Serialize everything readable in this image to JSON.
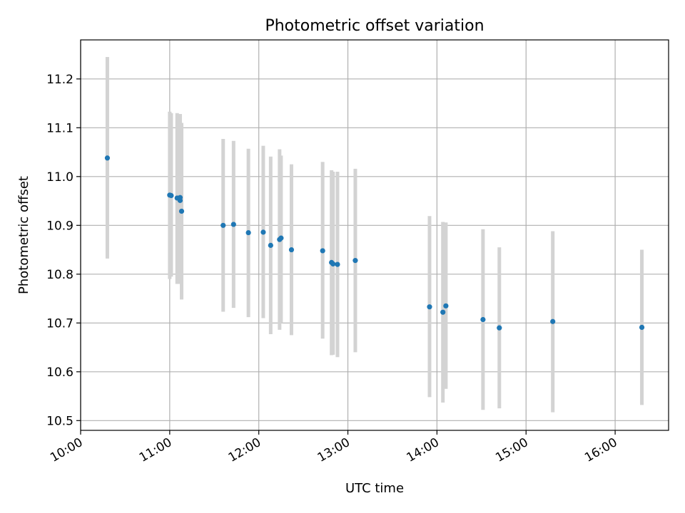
{
  "chart_data": {
    "type": "scatter",
    "title": "Photometric offset variation",
    "xlabel": "UTC time",
    "ylabel": "Photometric offset",
    "x_unit": "time of day (UTC)",
    "xlim": [
      "10:00",
      "16:36"
    ],
    "ylim": [
      10.48,
      11.28
    ],
    "x_ticks": [
      "10:00",
      "11:00",
      "12:00",
      "13:00",
      "14:00",
      "15:00",
      "16:00"
    ],
    "y_ticks": [
      "10.5",
      "10.6",
      "10.7",
      "10.8",
      "10.9",
      "11.0",
      "11.1",
      "11.2"
    ],
    "grid": true,
    "colors": {
      "point": "#1f77b4",
      "errorbar": "#d3d3d3"
    },
    "points": [
      {
        "t": "10:18",
        "y": 11.038,
        "lo": 10.832,
        "hi": 11.245
      },
      {
        "t": "11:00",
        "y": 10.962,
        "lo": 10.79,
        "hi": 11.133
      },
      {
        "t": "11:01",
        "y": 10.961,
        "lo": 10.795,
        "hi": 11.13
      },
      {
        "t": "11:05",
        "y": 10.956,
        "lo": 10.78,
        "hi": 11.13
      },
      {
        "t": "11:07",
        "y": 10.951,
        "lo": 10.78,
        "hi": 11.128
      },
      {
        "t": "11:07",
        "y": 10.957,
        "lo": 10.79,
        "hi": 11.128
      },
      {
        "t": "11:08",
        "y": 10.929,
        "lo": 10.748,
        "hi": 11.11
      },
      {
        "t": "11:36",
        "y": 10.9,
        "lo": 10.723,
        "hi": 11.077
      },
      {
        "t": "11:43",
        "y": 10.902,
        "lo": 10.731,
        "hi": 11.073
      },
      {
        "t": "11:53",
        "y": 10.885,
        "lo": 10.712,
        "hi": 11.057
      },
      {
        "t": "12:03",
        "y": 10.886,
        "lo": 10.71,
        "hi": 11.063
      },
      {
        "t": "12:08",
        "y": 10.859,
        "lo": 10.677,
        "hi": 11.041
      },
      {
        "t": "12:14",
        "y": 10.871,
        "lo": 10.686,
        "hi": 11.056
      },
      {
        "t": "12:15",
        "y": 10.874,
        "lo": 10.7,
        "hi": 11.043
      },
      {
        "t": "12:22",
        "y": 10.85,
        "lo": 10.675,
        "hi": 11.025
      },
      {
        "t": "12:43",
        "y": 10.848,
        "lo": 10.668,
        "hi": 11.03
      },
      {
        "t": "12:49",
        "y": 10.824,
        "lo": 10.634,
        "hi": 11.013
      },
      {
        "t": "12:50",
        "y": 10.821,
        "lo": 10.635,
        "hi": 11.01
      },
      {
        "t": "12:53",
        "y": 10.82,
        "lo": 10.63,
        "hi": 11.01
      },
      {
        "t": "13:05",
        "y": 10.828,
        "lo": 10.64,
        "hi": 11.016
      },
      {
        "t": "13:55",
        "y": 10.733,
        "lo": 10.548,
        "hi": 10.919
      },
      {
        "t": "14:04",
        "y": 10.722,
        "lo": 10.537,
        "hi": 10.907
      },
      {
        "t": "14:06",
        "y": 10.735,
        "lo": 10.565,
        "hi": 10.906
      },
      {
        "t": "14:31",
        "y": 10.707,
        "lo": 10.522,
        "hi": 10.892
      },
      {
        "t": "14:42",
        "y": 10.69,
        "lo": 10.525,
        "hi": 10.855
      },
      {
        "t": "15:18",
        "y": 10.703,
        "lo": 10.517,
        "hi": 10.888
      },
      {
        "t": "16:18",
        "y": 10.691,
        "lo": 10.532,
        "hi": 10.85
      }
    ]
  }
}
